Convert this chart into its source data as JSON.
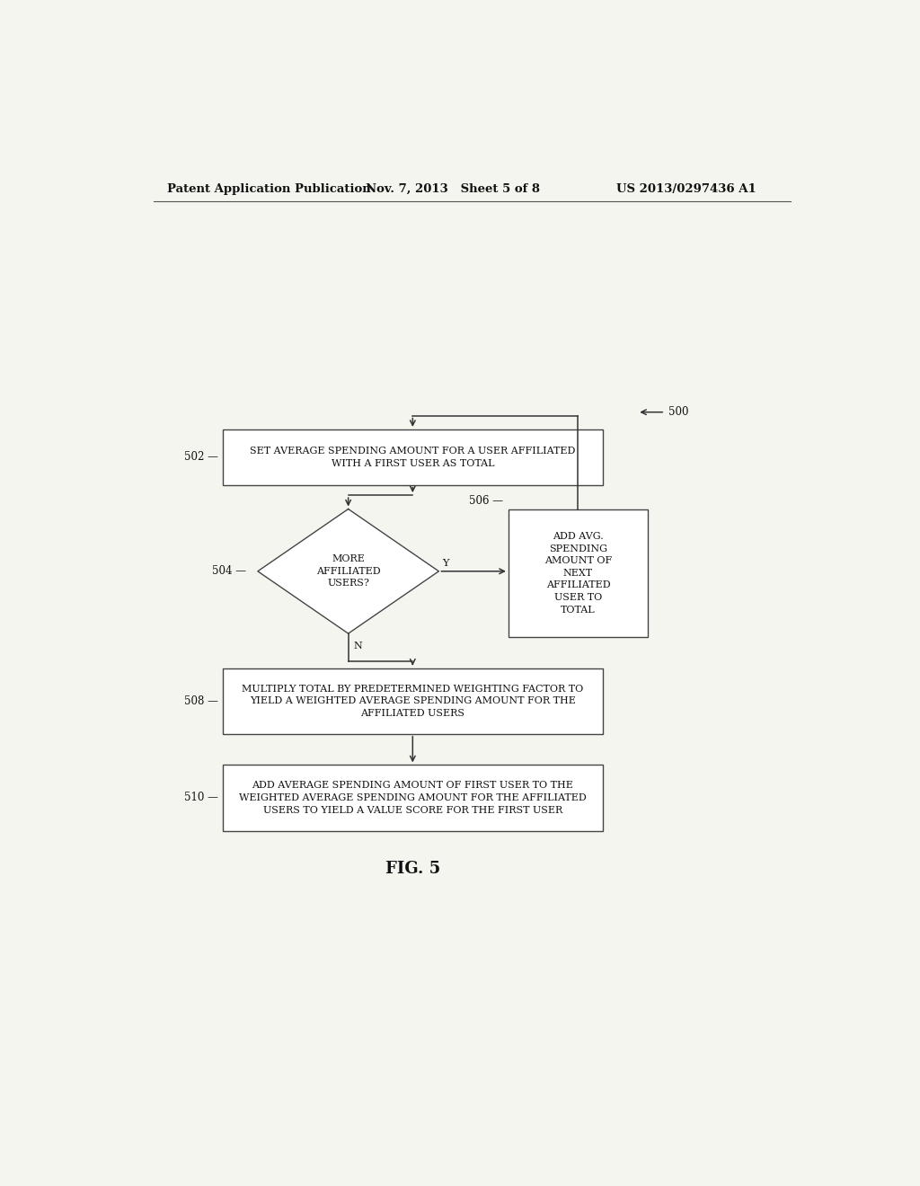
{
  "background_color": "#f5f5f0",
  "header_left": "Patent Application Publication",
  "header_mid": "Nov. 7, 2013   Sheet 5 of 8",
  "header_right": "US 2013/0297436 A1",
  "fig_label": "FIG. 5",
  "diagram_label": "500",
  "box502_text": "SET AVERAGE SPENDING AMOUNT FOR A USER AFFILIATED\nWITH A FIRST USER AS TOTAL",
  "box506_text": "ADD AVG.\nSPENDING\nAMOUNT OF\nNEXT\nAFFILIATED\nUSER TO\nTOTAL",
  "box508_text": "MULTIPLY TOTAL BY PREDETERMINED WEIGHTING FACTOR TO\nYIELD A WEIGHTED AVERAGE SPENDING AMOUNT FOR THE\nAFFILIATED USERS",
  "box510_text": "ADD AVERAGE SPENDING AMOUNT OF FIRST USER TO THE\nWEIGHTED AVERAGE SPENDING AMOUNT FOR THE AFFILIATED\nUSERS TO YIELD A VALUE SCORE FOR THE FIRST USER",
  "diamond_text": "MORE\nAFFILIATED\nUSERS?",
  "text_fontsize": 8.0,
  "label_fontsize": 8.5,
  "header_fontsize": 9.5
}
